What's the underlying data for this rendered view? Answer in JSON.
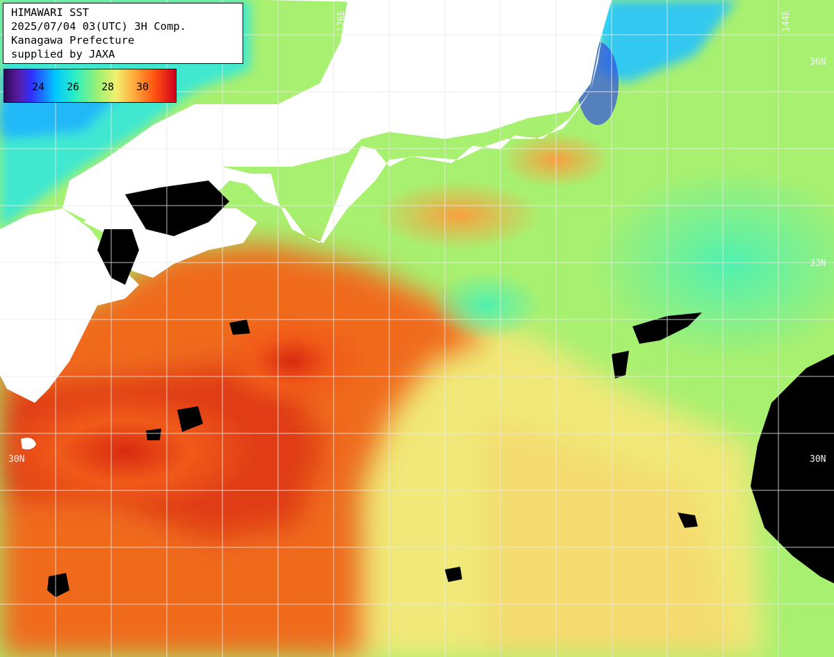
{
  "header": {
    "line1": "HIMAWARI SST",
    "line2": "2025/07/04 03(UTC) 3H Comp.",
    "line3": "Kanagawa Prefecture",
    "line4": "supplied by JAXA"
  },
  "legend": {
    "ticks": [
      "24",
      "26",
      "28",
      "30"
    ],
    "colors": [
      "#2a0a55",
      "#5a1aa0",
      "#3030ff",
      "#00c8ff",
      "#30f0c0",
      "#a0f070",
      "#f0f070",
      "#ffb040",
      "#ff5010",
      "#d00020"
    ]
  },
  "grid_labels": {
    "lon_126": "126E",
    "lon_144": "144E",
    "lat_36": "36N",
    "lat_33": "33N",
    "lat_30_left": "30N",
    "lat_30_right": "30N"
  },
  "colors": {
    "land": "#ffffff",
    "no_data": "#000000",
    "grid": "#e8e8e8",
    "cool_water": "#40f0c8",
    "mid_water": "#a8f070",
    "warm_water": "#f0e878",
    "hot_water": "#f06020",
    "hottest_water": "#d82010"
  }
}
